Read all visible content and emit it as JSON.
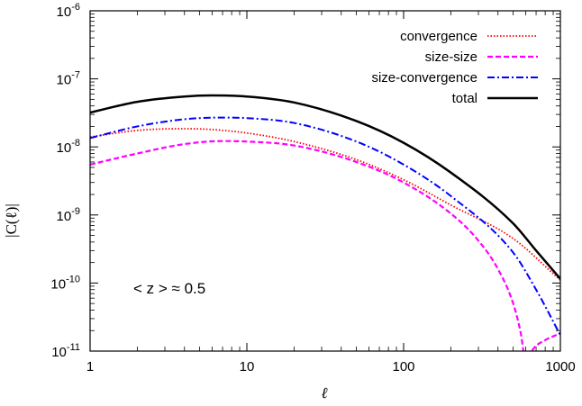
{
  "chart_data": {
    "type": "line",
    "title": "",
    "xlabel": "ℓ",
    "ylabel": "|C(ℓ)|",
    "xscale": "log",
    "yscale": "log",
    "xlim": [
      1,
      1000
    ],
    "ylim": [
      1e-11,
      1e-06
    ],
    "grid": false,
    "legend_position": "top-right",
    "x_ticks": [
      {
        "value": 1,
        "label": "1"
      },
      {
        "value": 10,
        "label": "10"
      },
      {
        "value": 100,
        "label": "100"
      },
      {
        "value": 1000,
        "label": "1000"
      }
    ],
    "y_ticks": [
      {
        "value": 1e-11,
        "base": "10",
        "exp": "-11"
      },
      {
        "value": 1e-10,
        "base": "10",
        "exp": "-10"
      },
      {
        "value": 1e-09,
        "base": "10",
        "exp": "-9"
      },
      {
        "value": 1e-08,
        "base": "10",
        "exp": "-8"
      },
      {
        "value": 1e-07,
        "base": "10",
        "exp": "-7"
      },
      {
        "value": 1e-06,
        "base": "10",
        "exp": "-6"
      }
    ],
    "annotation": "< z > ≈ 0.5",
    "series": [
      {
        "name": "convergence",
        "color": "#ff0000",
        "dash": "dotted",
        "x": [
          1,
          2,
          4,
          6,
          10,
          20,
          50,
          100,
          200,
          500,
          1000
        ],
        "y": [
          1.4e-08,
          1.75e-08,
          1.85e-08,
          1.8e-08,
          1.6e-08,
          1.2e-08,
          6.5e-09,
          3.3e-09,
          1.4e-09,
          4.5e-10,
          1.1e-10
        ]
      },
      {
        "name": "size-size",
        "color": "#ff00ff",
        "dash": "dashed",
        "x": [
          1,
          2,
          4,
          7,
          10,
          20,
          50,
          100,
          200,
          300,
          400,
          500,
          560,
          590,
          620,
          700,
          800,
          900,
          1000
        ],
        "y": [
          5.5e-09,
          8e-09,
          1.1e-08,
          1.22e-08,
          1.2e-08,
          1.05e-08,
          6e-09,
          3e-09,
          1.05e-09,
          4.2e-10,
          1.6e-10,
          5e-11,
          1.8e-11,
          9e-12,
          9e-12,
          1.2e-11,
          1.45e-11,
          1.65e-11,
          1.8e-11
        ]
      },
      {
        "name": "size-convergence",
        "color": "#0000ff",
        "dash": "dashdot",
        "x": [
          1,
          2,
          4,
          7,
          10,
          20,
          50,
          100,
          200,
          500,
          700,
          850,
          1000
        ],
        "y": [
          1.35e-08,
          2e-08,
          2.55e-08,
          2.7e-08,
          2.65e-08,
          2.25e-08,
          1.2e-08,
          5.5e-09,
          1.9e-09,
          2.8e-10,
          8e-11,
          3.5e-11,
          1.7e-11
        ]
      },
      {
        "name": "total",
        "color": "#000000",
        "dash": "solid",
        "x": [
          1,
          2,
          4,
          6,
          10,
          20,
          50,
          100,
          200,
          500,
          700,
          1000
        ],
        "y": [
          3.2e-08,
          4.6e-08,
          5.5e-08,
          5.7e-08,
          5.5e-08,
          4.5e-08,
          2.4e-08,
          1.15e-08,
          4.2e-09,
          7.5e-10,
          3e-10,
          1.15e-10
        ]
      }
    ]
  }
}
